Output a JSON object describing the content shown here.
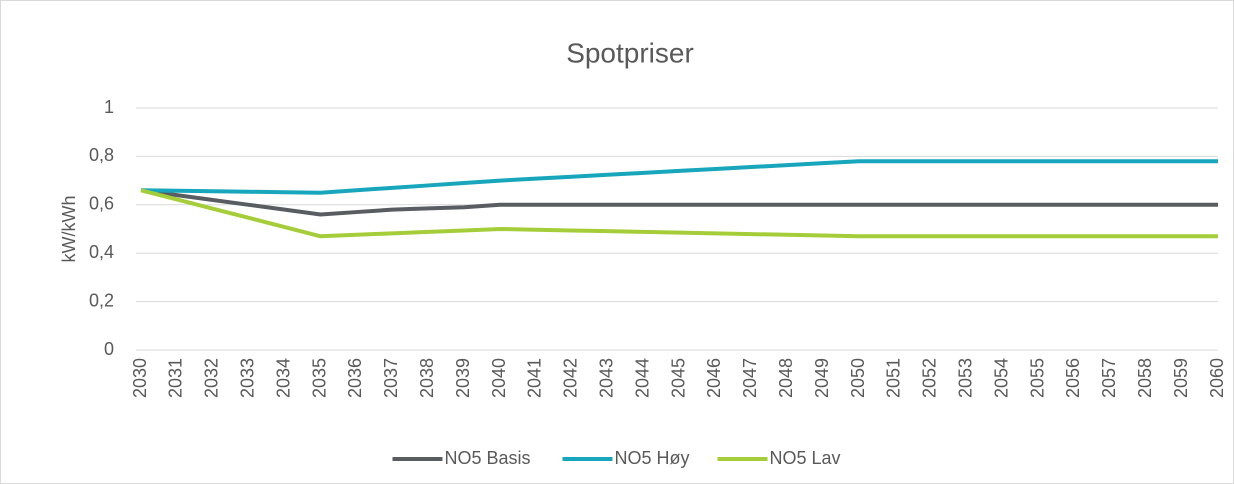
{
  "chart_data": {
    "type": "line",
    "title": "Spotpriser",
    "y_label": "kW/kWh",
    "categories": [
      "2030",
      "2031",
      "2032",
      "2033",
      "2034",
      "2035",
      "2036",
      "2037",
      "2038",
      "2039",
      "2040",
      "2041",
      "2042",
      "2043",
      "2044",
      "2045",
      "2046",
      "2047",
      "2048",
      "2049",
      "2050",
      "2051",
      "2052",
      "2053",
      "2054",
      "2055",
      "2056",
      "2057",
      "2058",
      "2059",
      "2060"
    ],
    "series": [
      {
        "name": "NO5 Basis",
        "color": "#595d62",
        "values": [
          0.66,
          0.64,
          0.62,
          0.6,
          0.58,
          0.56,
          0.57,
          0.58,
          0.585,
          0.59,
          0.6,
          0.6,
          0.6,
          0.6,
          0.6,
          0.6,
          0.6,
          0.6,
          0.6,
          0.6,
          0.6,
          0.6,
          0.6,
          0.6,
          0.6,
          0.6,
          0.6,
          0.6,
          0.6,
          0.6,
          0.6
        ]
      },
      {
        "name": "NO5 Høy",
        "color": "#17a6bb",
        "values": [
          0.66,
          0.658,
          0.656,
          0.654,
          0.652,
          0.65,
          0.66,
          0.67,
          0.68,
          0.69,
          0.7,
          0.708,
          0.716,
          0.724,
          0.732,
          0.74,
          0.748,
          0.756,
          0.764,
          0.772,
          0.78,
          0.78,
          0.78,
          0.78,
          0.78,
          0.78,
          0.78,
          0.78,
          0.78,
          0.78,
          0.78
        ]
      },
      {
        "name": "NO5 Lav",
        "color": "#a5cd39",
        "values": [
          0.66,
          0.622,
          0.584,
          0.546,
          0.508,
          0.47,
          0.476,
          0.482,
          0.488,
          0.494,
          0.5,
          0.497,
          0.494,
          0.491,
          0.488,
          0.485,
          0.482,
          0.479,
          0.476,
          0.473,
          0.47,
          0.47,
          0.47,
          0.47,
          0.47,
          0.47,
          0.47,
          0.47,
          0.47,
          0.47,
          0.47
        ]
      }
    ],
    "ylim": [
      0,
      1
    ],
    "yticks": [
      0,
      {
        "value": 0.2,
        "label": "0,2"
      },
      {
        "value": 0.4,
        "label": "0,4"
      },
      {
        "value": 0.6,
        "label": "0,6"
      },
      {
        "value": 0.8,
        "label": "0,8"
      },
      1
    ],
    "grid": true,
    "legend": "bottom"
  }
}
